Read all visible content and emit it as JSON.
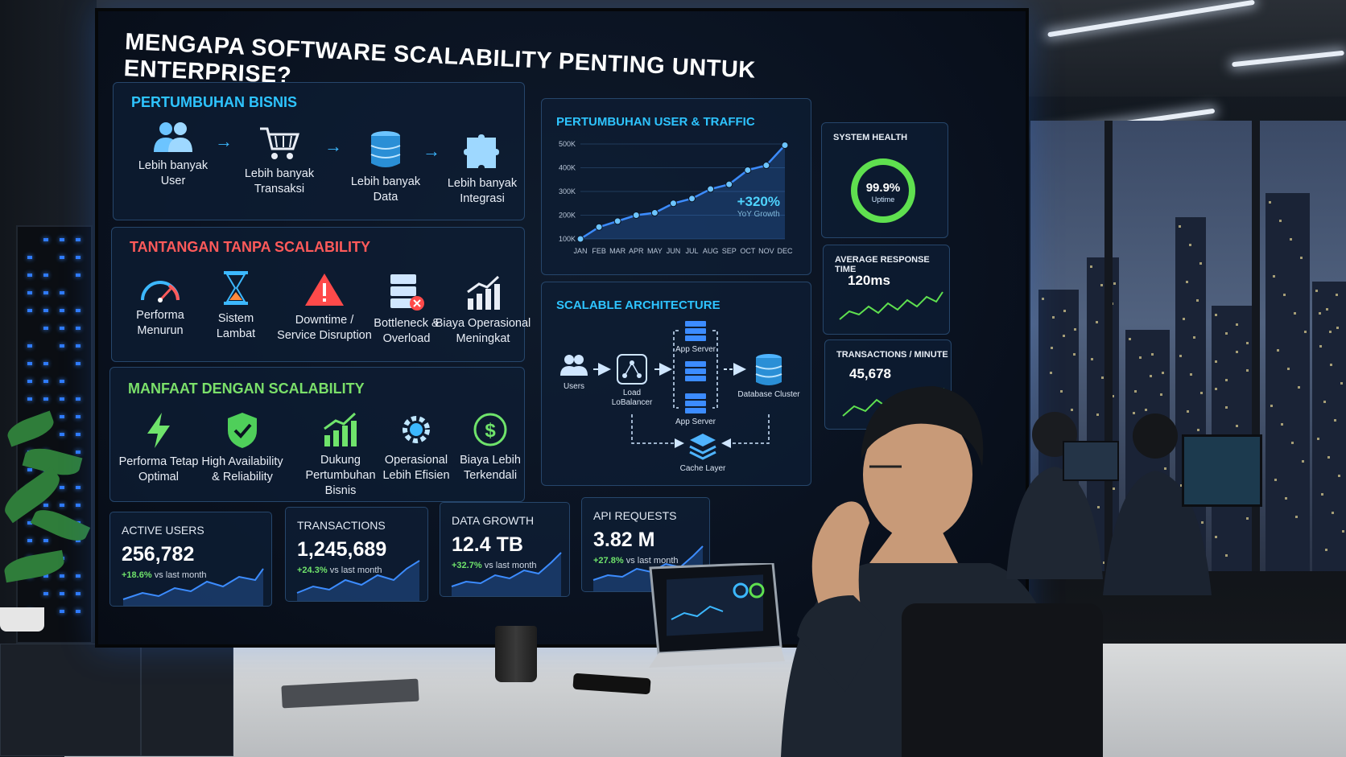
{
  "title": "MENGAPA SOFTWARE SCALABILITY PENTING UNTUK ENTERPRISE?",
  "colors": {
    "accent_blue": "#2ec4ff",
    "alert_red": "#ff5a5a",
    "success_green": "#7be06a",
    "screen_bg": "#0a1220"
  },
  "growth": {
    "title": "PERTUMBUHAN BISNIS",
    "items": [
      {
        "label": "Lebih banyak\nUser",
        "icon": "users-icon"
      },
      {
        "label": "Lebih banyak\nTransaksi",
        "icon": "cart-icon"
      },
      {
        "label": "Lebih banyak\nData",
        "icon": "database-icon"
      },
      {
        "label": "Lebih banyak\nIntegrasi",
        "icon": "puzzle-icon"
      }
    ],
    "arrow": "→"
  },
  "challenges": {
    "title": "TANTANGAN TANPA SCALABILITY",
    "items": [
      {
        "label": "Performa\nMenurun",
        "icon": "gauge-icon"
      },
      {
        "label": "Sistem\nLambat",
        "icon": "hourglass-icon"
      },
      {
        "label": "Downtime /\nService Disruption",
        "icon": "warning-icon"
      },
      {
        "label": "Bottleneck &\nOverload",
        "icon": "server-error-icon"
      },
      {
        "label": "Biaya Operasional\nMeningkat",
        "icon": "cost-increase-icon"
      }
    ]
  },
  "benefits": {
    "title": "MANFAAT DENGAN SCALABILITY",
    "items": [
      {
        "label": "Performa Tetap\nOptimal",
        "icon": "lightning-icon"
      },
      {
        "label": "High Availability\n& Reliability",
        "icon": "shield-check-icon"
      },
      {
        "label": "Dukung Pertumbuhan\nBisnis",
        "icon": "growth-chart-icon"
      },
      {
        "label": "Operasional\nLebih Efisien",
        "icon": "gear-icon"
      },
      {
        "label": "Biaya Lebih\nTerkendali",
        "icon": "dollar-icon"
      }
    ]
  },
  "traffic": {
    "title": "PERTUMBUHAN USER & TRAFFIC",
    "growth_value": "+320%",
    "growth_sub": "YoY Growth"
  },
  "chart_data": {
    "type": "line",
    "title": "PERTUMBUHAN USER & TRAFFIC",
    "categories": [
      "JAN",
      "FEB",
      "MAR",
      "APR",
      "MAY",
      "JUN",
      "JUL",
      "AUG",
      "SEP",
      "OCT",
      "NOV",
      "DEC"
    ],
    "values": [
      100,
      150,
      175,
      200,
      210,
      250,
      270,
      310,
      330,
      390,
      410,
      495
    ],
    "y_ticks": [
      "100K",
      "200K",
      "300K",
      "400K",
      "500K"
    ],
    "ylim": [
      100,
      500
    ],
    "grid": true
  },
  "architecture": {
    "title": "SCALABLE ARCHITECTURE",
    "nodes": {
      "users": "Users",
      "load_balancer": "Load\nLoBalancer",
      "app_server_top": "App Server",
      "app_server_bottom": "App Server",
      "database": "Database Cluster",
      "cache": "Cache Layer"
    }
  },
  "system_health": {
    "title": "SYSTEM HEALTH",
    "value": "99.9%",
    "label": "Uptime",
    "percent": 99.9
  },
  "response_time": {
    "title": "AVERAGE RESPONSE TIME",
    "value": "120ms"
  },
  "transactions_minute": {
    "title": "TRANSACTIONS / MINUTE",
    "value": "45,678"
  },
  "kpis": [
    {
      "label": "ACTIVE USERS",
      "value": "256,782",
      "delta": "+18.6%",
      "delta_text": "vs last month"
    },
    {
      "label": "TRANSACTIONS",
      "value": "1,245,689",
      "delta": "+24.3%",
      "delta_text": "vs last month"
    },
    {
      "label": "DATA GROWTH",
      "value": "12.4 TB",
      "delta": "+32.7%",
      "delta_text": "vs last month"
    },
    {
      "label": "API REQUESTS",
      "value": "3.82 M",
      "delta": "+27.8%",
      "delta_text": "vs last month"
    }
  ]
}
